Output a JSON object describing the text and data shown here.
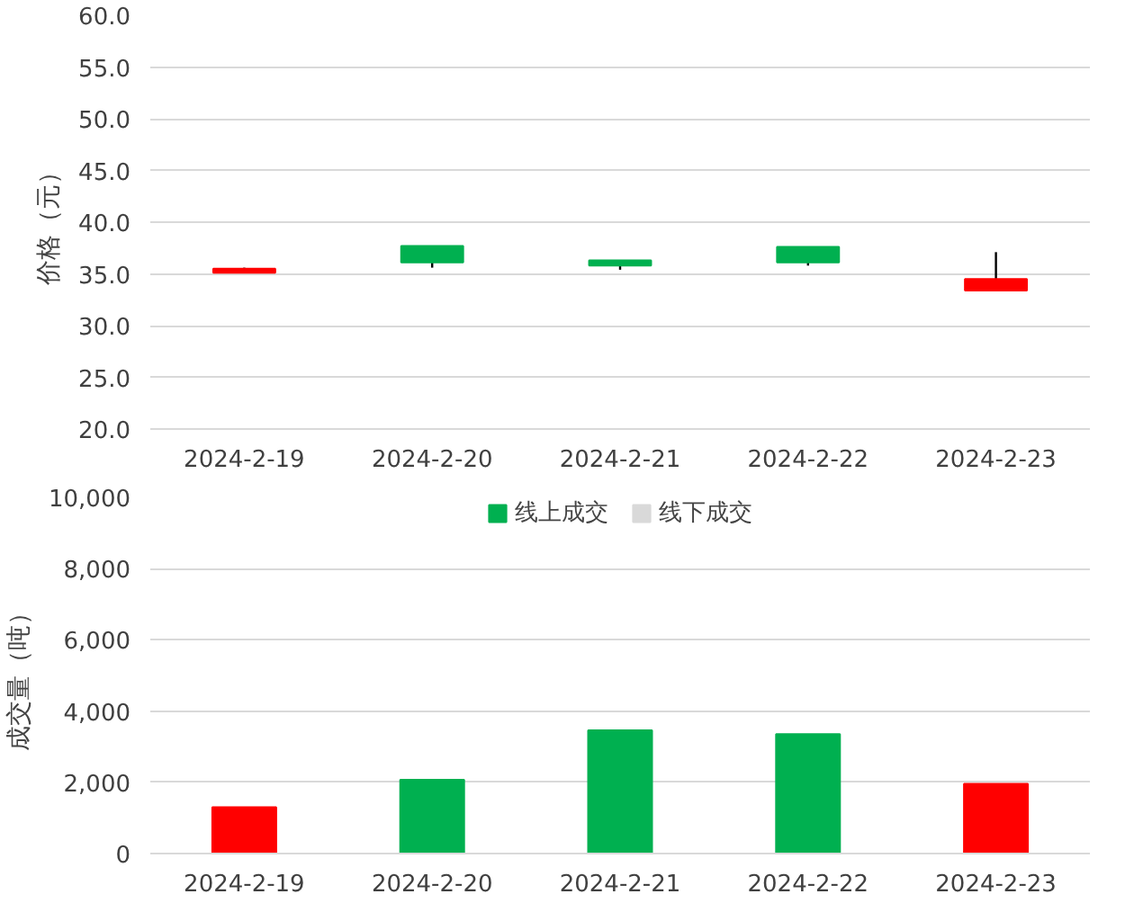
{
  "chart_data": [
    {
      "type": "candlestick",
      "ylabel": "价格（元）",
      "categories": [
        "2024-2-19",
        "2024-2-20",
        "2024-2-21",
        "2024-2-22",
        "2024-2-23"
      ],
      "ohlc": [
        [
          35.5,
          35.6,
          35.1,
          35.1
        ],
        [
          36.1,
          37.7,
          35.6,
          37.7
        ],
        [
          35.8,
          36.3,
          35.4,
          36.3
        ],
        [
          36.1,
          37.6,
          35.8,
          37.6
        ],
        [
          34.5,
          37.1,
          33.4,
          33.4
        ]
      ],
      "colors": [
        "#ff0000",
        "#00b050",
        "#00b050",
        "#00b050",
        "#ff0000"
      ],
      "ylim": [
        20,
        60
      ],
      "yticks": [
        {
          "value": 20,
          "label": "20.0"
        },
        {
          "value": 25,
          "label": "25.0"
        },
        {
          "value": 30,
          "label": "30.0"
        },
        {
          "value": 35,
          "label": "35.0"
        },
        {
          "value": 40,
          "label": "40.0"
        },
        {
          "value": 45,
          "label": "45.0"
        },
        {
          "value": 50,
          "label": "50.0"
        },
        {
          "value": 55,
          "label": "55.0"
        },
        {
          "value": 60,
          "label": "60.0"
        }
      ],
      "grid": "y"
    },
    {
      "type": "bar",
      "ylabel": "成交量（吨）",
      "categories": [
        "2024-2-19",
        "2024-2-20",
        "2024-2-21",
        "2024-2-22",
        "2024-2-23"
      ],
      "series": [
        {
          "name": "线上成交",
          "color": "#00b050",
          "colors": [
            "#ff0000",
            "#00b050",
            "#00b050",
            "#00b050",
            "#ff0000"
          ],
          "values": [
            1300,
            2070,
            3460,
            3350,
            1960
          ]
        },
        {
          "name": "线下成交",
          "color": "#d9d9d9",
          "values": [
            null,
            null,
            null,
            null,
            null
          ]
        }
      ],
      "ylim": [
        0,
        10000
      ],
      "yticks": [
        0,
        {
          "value": 2000,
          "label": "2,000"
        },
        {
          "value": 4000,
          "label": "4,000"
        },
        {
          "value": 6000,
          "label": "6,000"
        },
        {
          "value": 8000,
          "label": "8,000"
        },
        {
          "value": 10000,
          "label": "10,000"
        }
      ],
      "grid": "y",
      "legend": "top"
    }
  ]
}
